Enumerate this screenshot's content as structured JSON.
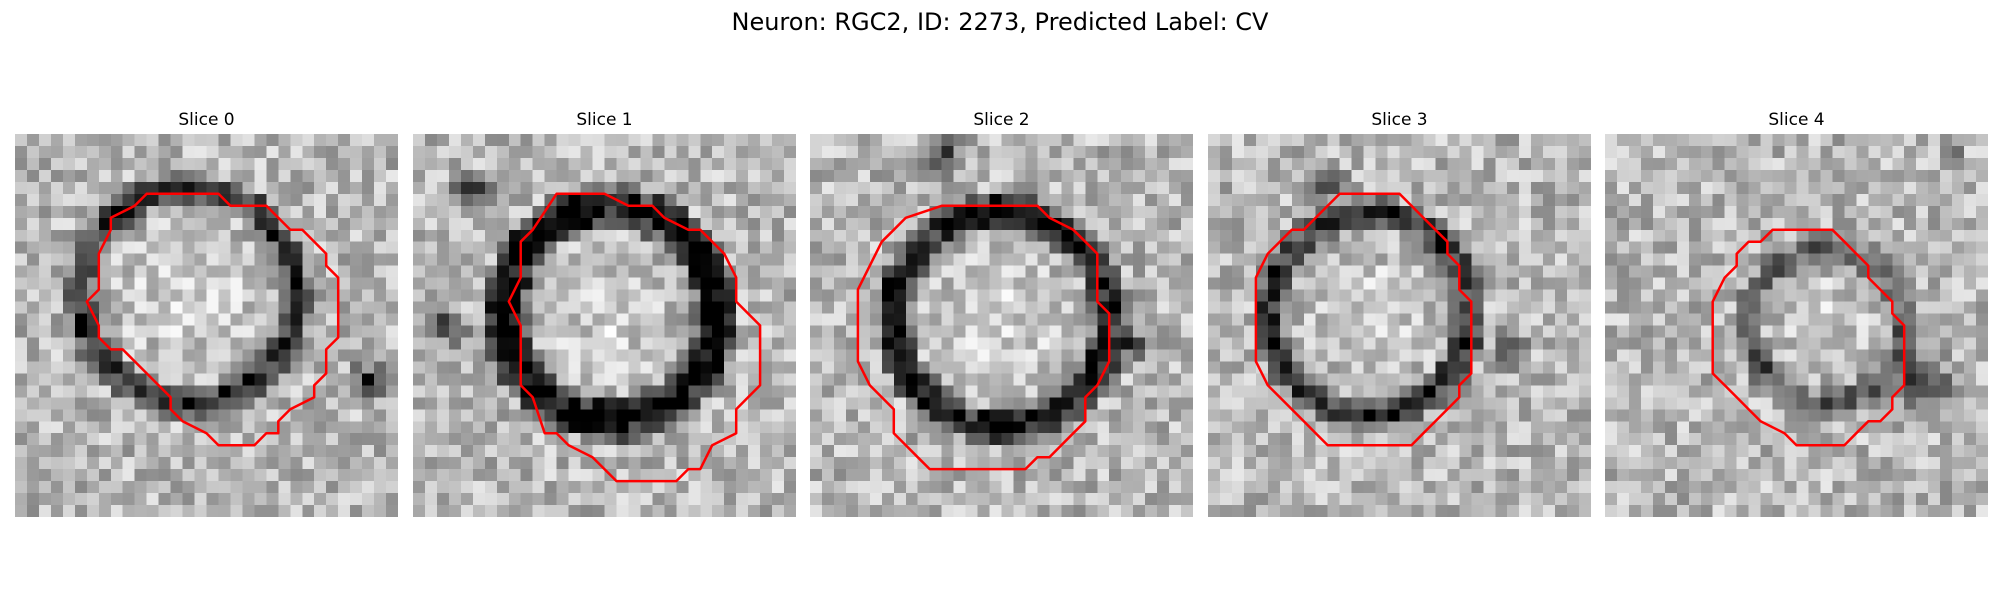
{
  "figure": {
    "title": "Neuron: RGC2, ID: 2273, Predicted Label: CV",
    "contour_color": "#ff0000",
    "panels": [
      {
        "label": "Slice 0"
      },
      {
        "label": "Slice 1"
      },
      {
        "label": "Slice 2"
      },
      {
        "label": "Slice 3"
      },
      {
        "label": "Slice 4"
      }
    ]
  }
}
